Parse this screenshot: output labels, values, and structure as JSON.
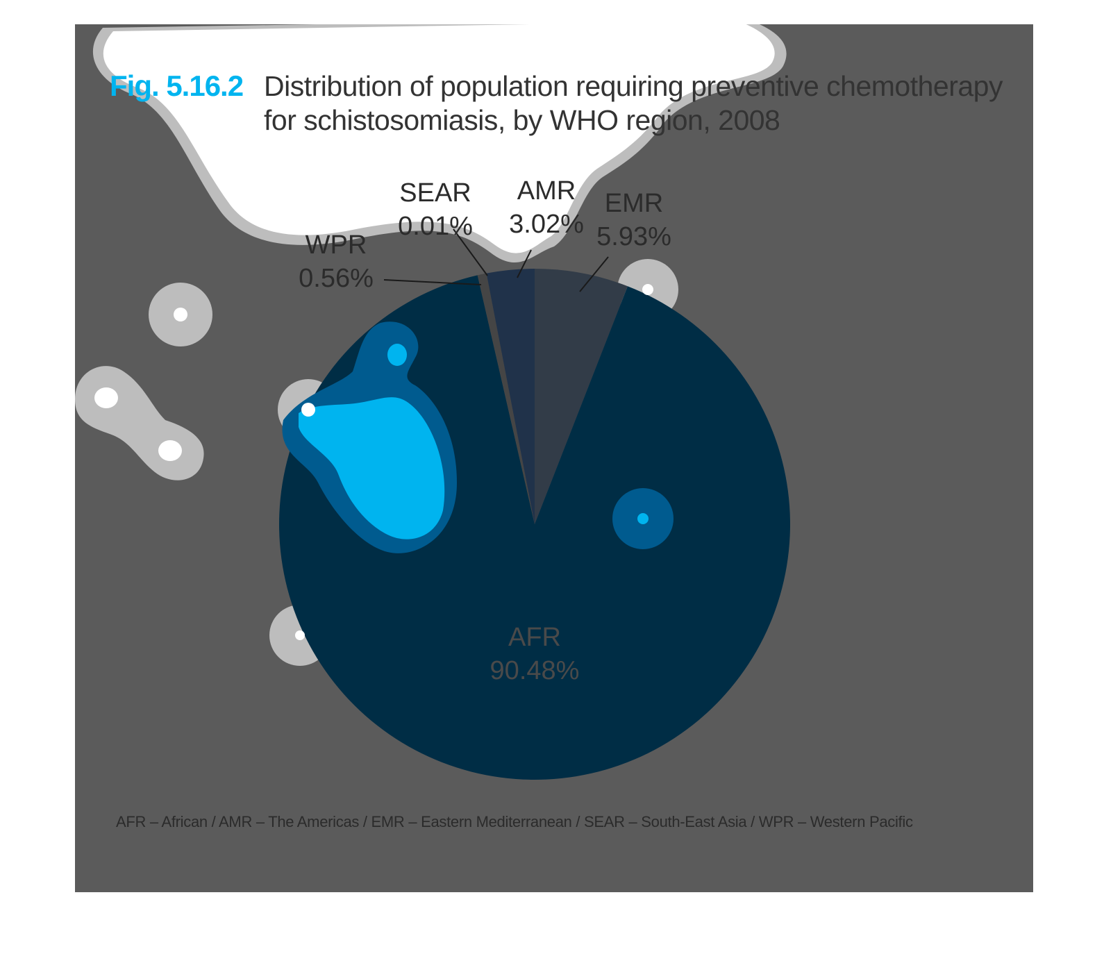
{
  "figure": {
    "number": "Fig. 5.16.2",
    "title_line1": "Distribution of population requiring preventive chemotherapy",
    "title_line2": "for schistosomiasis, by WHO region, 2008",
    "footnote": "AFR – African / AMR – The Americas / EMR – Eastern Mediterranean / SEAR – South-East Asia / WPR – Western Pacific"
  },
  "colors": {
    "accent": "#00b4ef",
    "background": "#5b5b5b",
    "afr": "#002d45",
    "emr": "#323c48",
    "amr": "#20324a",
    "sear": "#3a3a3a",
    "wpr": "#454545"
  },
  "chart_data": {
    "type": "pie",
    "title": "Distribution of population requiring preventive chemotherapy for schistosomiasis, by WHO region, 2008",
    "unit": "%",
    "slices": [
      {
        "label": "EMR",
        "value": 5.93,
        "display": "5.93%"
      },
      {
        "label": "AFR",
        "value": 90.48,
        "display": "90.48%"
      },
      {
        "label": "WPR",
        "value": 0.56,
        "display": "0.56%"
      },
      {
        "label": "SEAR",
        "value": 0.01,
        "display": "0.01%"
      },
      {
        "label": "AMR",
        "value": 3.02,
        "display": "3.02%"
      }
    ],
    "start": "12 o'clock",
    "direction": "clockwise"
  }
}
